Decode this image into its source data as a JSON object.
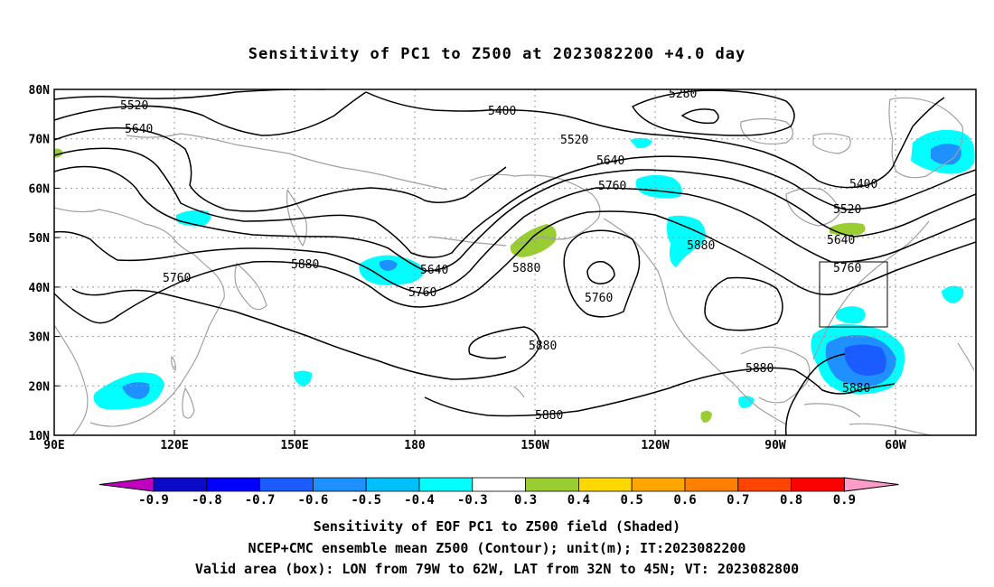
{
  "title": "Sensitivity of PC1 to Z500 at 2023082200 +4.0 day",
  "lat_labels": [
    "80N",
    "70N",
    "60N",
    "50N",
    "40N",
    "30N",
    "20N",
    "10N"
  ],
  "lon_labels": [
    "90E",
    "120E",
    "150E",
    "180",
    "150W",
    "120W",
    "90W",
    "60W"
  ],
  "contour_labels": [
    "5520",
    "5640",
    "5400",
    "5280",
    "5520",
    "5640",
    "5760",
    "5400",
    "5520",
    "5640",
    "5880",
    "5760",
    "5880",
    "5640",
    "5760",
    "5880",
    "5760",
    "5880",
    "5880",
    "5880",
    "5760",
    "5880"
  ],
  "colorbar": {
    "labels": [
      "-0.9",
      "-0.8",
      "-0.7",
      "-0.6",
      "-0.5",
      "-0.4",
      "-0.3",
      "0.3",
      "0.4",
      "0.5",
      "0.6",
      "0.7",
      "0.8",
      "0.9"
    ],
    "colors": [
      "#c000c0",
      "#0a0ac8",
      "#0000ff",
      "#1a5cff",
      "#1e90ff",
      "#00bfff",
      "#00ffff",
      "#ffffff",
      "#9acd32",
      "#ffd700",
      "#ffa500",
      "#ff7f00",
      "#ff4500",
      "#ff0000",
      "#ff9cc8"
    ]
  },
  "caption_line1": "Sensitivity of EOF PC1 to Z500 field (Shaded)",
  "caption_line2": "NCEP+CMC ensemble mean Z500 (Contour); unit(m); IT:2023082200",
  "caption_line3": "Valid area (box): LON from 79W to 62W, LAT from 32N to 45N; VT: 2023082800",
  "shading_colors": {
    "neg_weak": "#00ffff",
    "neg_mid": "#1e90ff",
    "neg_strong": "#1a5cff",
    "pos_weak": "#9acd32"
  }
}
